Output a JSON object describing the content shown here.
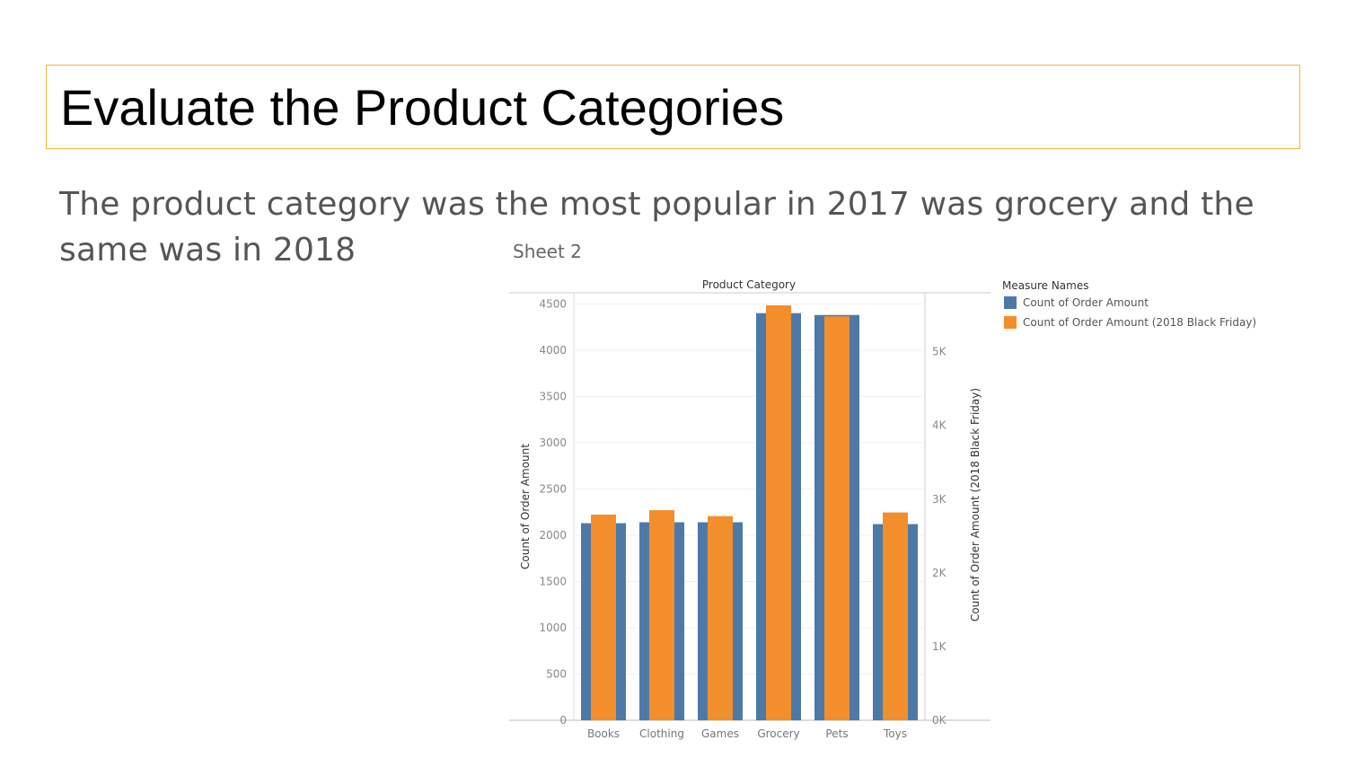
{
  "slide": {
    "title": "Evaluate the Product Categories",
    "body": "The product category was the most popular in 2017 was grocery and the same was in 2018"
  },
  "chart_data": {
    "type": "bar",
    "sheet_title": "Sheet 2",
    "title": "Product Category",
    "categories": [
      "Books",
      "Clothing",
      "Games",
      "Grocery",
      "Pets",
      "Toys"
    ],
    "series": [
      {
        "name": "Count of Order Amount",
        "axis": "left",
        "color": "#4e79a7",
        "values": [
          2130,
          2140,
          2140,
          4400,
          4380,
          2120
        ]
      },
      {
        "name": "Count of Order Amount (2018 Black Friday)",
        "axis": "right",
        "color": "#f28e2b",
        "values": [
          2790,
          2850,
          2770,
          5630,
          5480,
          2820
        ]
      }
    ],
    "ylabel": "Count of Order Amount",
    "ylabel_right": "Count of Order Amount (2018 Black Friday)",
    "ylim": [
      0,
      4620
    ],
    "ylim_right": [
      0,
      5800
    ],
    "yticks": [
      "0",
      "500",
      "1000",
      "1500",
      "2000",
      "2500",
      "3000",
      "3500",
      "4000",
      "4500"
    ],
    "yticks_right": [
      "0K",
      "1K",
      "2K",
      "3K",
      "4K",
      "5K"
    ],
    "legend": {
      "title": "Measure Names",
      "placement": "right"
    },
    "grid": true
  }
}
